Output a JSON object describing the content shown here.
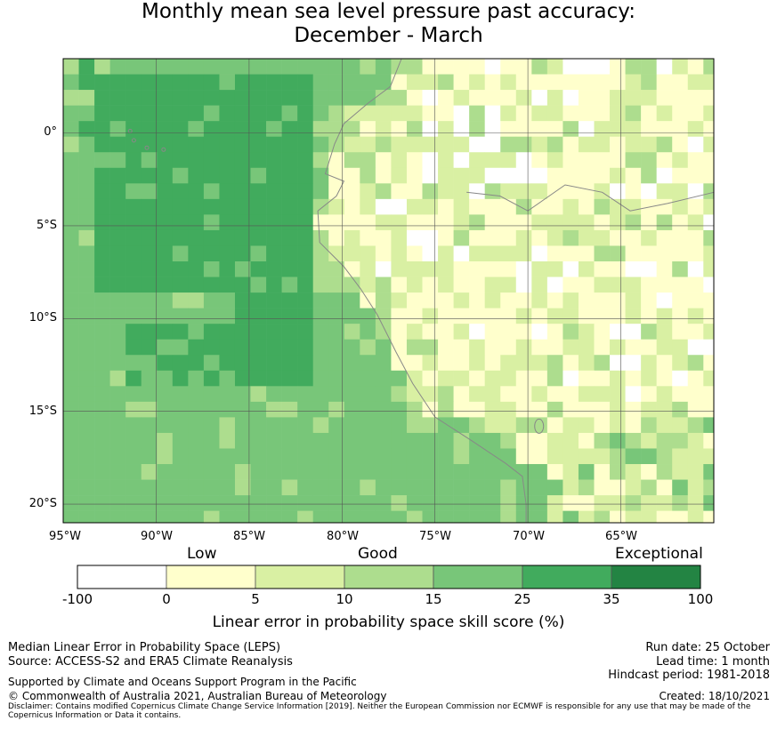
{
  "title": {
    "line1": "Monthly mean sea level pressure past accuracy:",
    "line2": "December - March"
  },
  "map": {
    "lat_labels": [
      "0°",
      "5°S",
      "10°S",
      "15°S",
      "20°S"
    ],
    "lat_values": [
      0,
      -5,
      -10,
      -15,
      -20
    ],
    "lon_labels": [
      "95°W",
      "90°W",
      "85°W",
      "80°W",
      "75°W",
      "70°W",
      "65°W"
    ],
    "lon_values": [
      -95,
      -90,
      -85,
      -80,
      -75,
      -70,
      -65
    ],
    "lat_range": [
      -21,
      4
    ],
    "lon_range": [
      -95,
      -60
    ],
    "colors": {
      "c0": "#ffffff",
      "c1": "#ffffcc",
      "c2": "#d9f0a3",
      "c3": "#addd8e",
      "c4": "#78c679",
      "c5": "#41ab5d",
      "c6": "#238443",
      "grid": "#555555",
      "coast": "#888888"
    }
  },
  "colorbar": {
    "categories": [
      "Low",
      "Good",
      "Exceptional"
    ],
    "ticks": [
      "-100",
      "0",
      "5",
      "10",
      "15",
      "25",
      "35",
      "100"
    ],
    "label": "Linear error in probability space skill score (%)"
  },
  "footer": {
    "method": "Median Linear Error in Probability Space (LEPS)",
    "source": "Source: ACCESS-S2 and ERA5 Climate Reanalysis",
    "support": "Supported by Climate and Oceans Support Program in the Pacific",
    "copyright": "© Commonwealth of Australia 2021, Australian Bureau of Meteorology",
    "run_date": "Run date: 25 October",
    "lead_time": "Lead time: 1 month",
    "hindcast": "Hindcast period: 1981-2018",
    "created": "Created: 18/10/2021",
    "disclaimer": "Disclaimer: Contains modified Copernicus Climate Change Service Information [2019]. Neither the European Commission nor ECMWF is responsible for any use that may be made of the Copernicus Information or Data it contains."
  }
}
